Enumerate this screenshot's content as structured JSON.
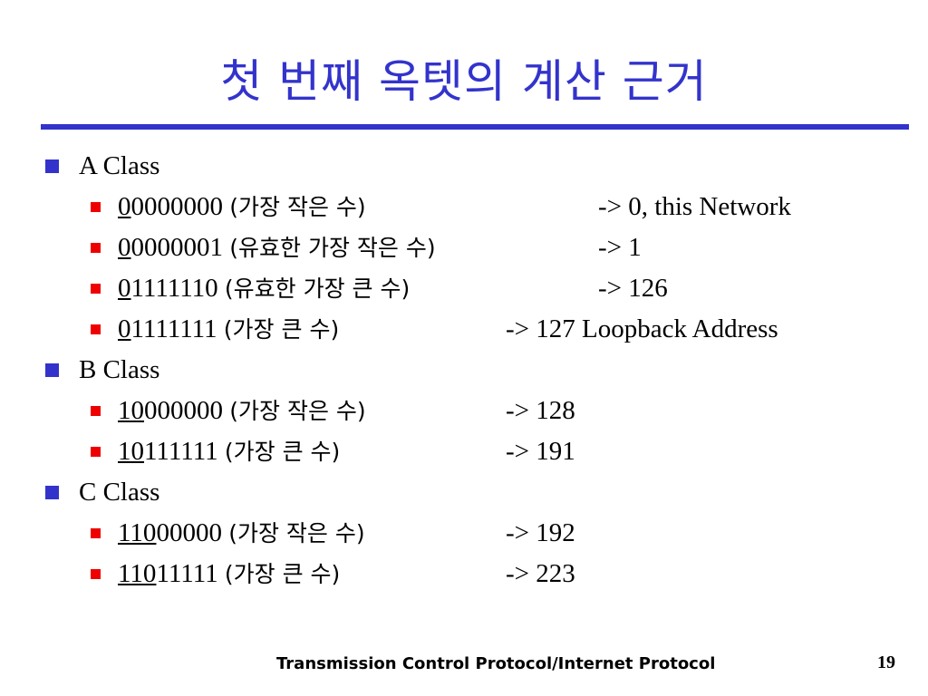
{
  "title": "첫 번째 옥텟의 계산 근거",
  "colors": {
    "title": "#3333cc",
    "bullet_level1": "#3333cc",
    "bullet_level2": "#ee0000"
  },
  "sections": [
    {
      "label": "A Class",
      "items": [
        {
          "prefix": "0",
          "rest": "0000000",
          "desc": "(가장 작은 수)",
          "result": "-> 0, this Network"
        },
        {
          "prefix": "0",
          "rest": "0000001",
          "desc": "(유효한 가장 작은 수)",
          "result": "-> 1"
        },
        {
          "prefix": "0",
          "rest": "1111110",
          "desc": "(유효한 가장 큰 수)",
          "result": "-> 126"
        },
        {
          "prefix": "0",
          "rest": "1111111",
          "desc": "(가장 큰 수)",
          "result": "-> 127 Loopback Address"
        }
      ]
    },
    {
      "label": "B Class",
      "items": [
        {
          "prefix": "10",
          "rest": "000000",
          "desc": "(가장 작은 수)",
          "result": "-> 128"
        },
        {
          "prefix": "10",
          "rest": "111111",
          "desc": "(가장 큰 수)",
          "result": "-> 191"
        }
      ]
    },
    {
      "label": "C Class",
      "items": [
        {
          "prefix": "110",
          "rest": "00000",
          "desc": "(가장 작은 수)",
          "result": "-> 192"
        },
        {
          "prefix": "110",
          "rest": "11111",
          "desc": "(가장 큰 수)",
          "result": "-> 223"
        }
      ]
    }
  ],
  "footer": {
    "text": "Transmission Control Protocol/Internet Protocol",
    "page": "19"
  }
}
